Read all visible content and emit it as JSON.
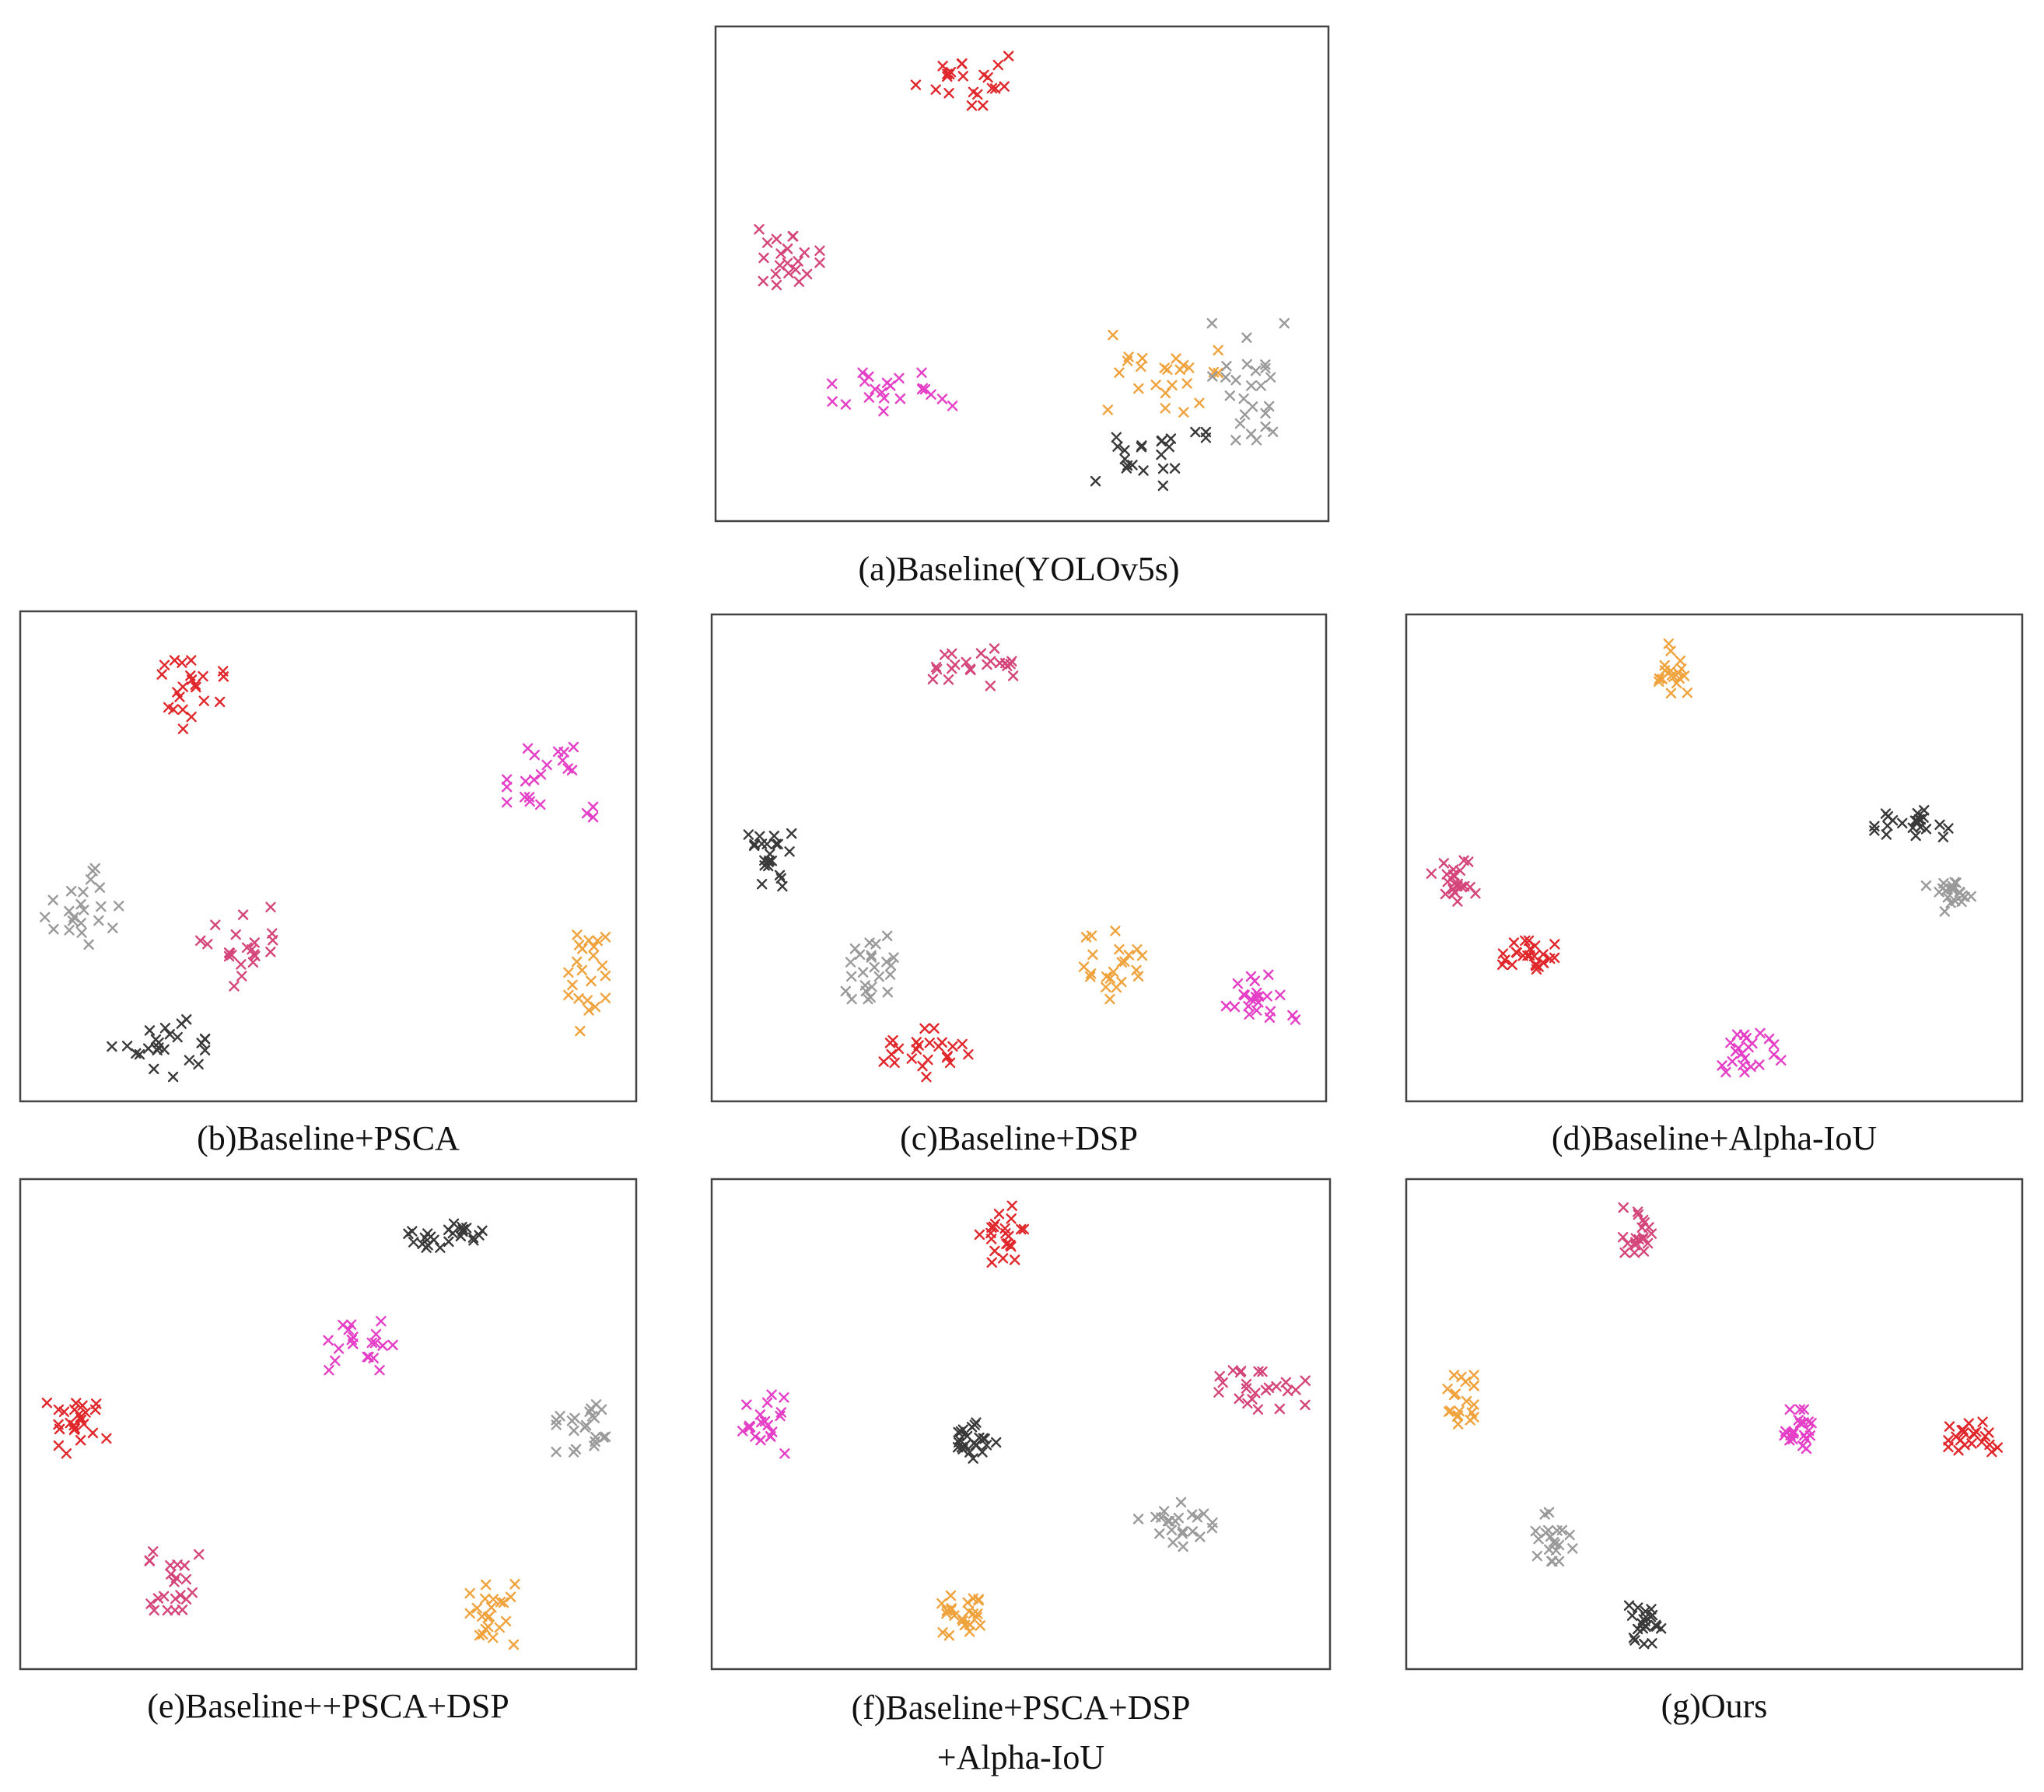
{
  "figure": {
    "colors": {
      "red": "#e0282c",
      "rose": "#d4467a",
      "magenta": "#e43fc6",
      "orange": "#f0a23c",
      "gray": "#9a9a9a",
      "black": "#3a3a3a",
      "frame": "#444444"
    }
  },
  "chart_data": [
    {
      "type": "scatter",
      "caption": "(a)Baseline(YOLOv5s)",
      "marker": "x",
      "xlim": [
        0,
        100
      ],
      "ylim": [
        0,
        100
      ],
      "series": [
        {
          "color": "red",
          "center": [
            40,
            89
          ],
          "spread": [
            8,
            5
          ],
          "count": 22
        },
        {
          "color": "rose",
          "center": [
            11,
            53
          ],
          "spread": [
            6,
            6
          ],
          "count": 22
        },
        {
          "color": "magenta",
          "center": [
            29,
            26
          ],
          "spread": [
            10,
            4
          ],
          "count": 22
        },
        {
          "color": "orange",
          "center": [
            73,
            30
          ],
          "spread": [
            9,
            8
          ],
          "count": 24
        },
        {
          "color": "gray",
          "center": [
            88,
            28
          ],
          "spread": [
            7,
            12
          ],
          "count": 26
        },
        {
          "color": "black",
          "center": [
            71,
            12
          ],
          "spread": [
            9,
            6
          ],
          "count": 22
        }
      ]
    },
    {
      "type": "scatter",
      "caption": "(b)Baseline+PSCA",
      "marker": "x",
      "xlim": [
        0,
        100
      ],
      "ylim": [
        0,
        100
      ],
      "series": [
        {
          "color": "red",
          "center": [
            28,
            83
          ],
          "spread": [
            5,
            7
          ],
          "count": 22
        },
        {
          "color": "magenta",
          "center": [
            86,
            66
          ],
          "spread": [
            7,
            8
          ],
          "count": 22
        },
        {
          "color": "gray",
          "center": [
            10,
            40
          ],
          "spread": [
            6,
            8
          ],
          "count": 22
        },
        {
          "color": "rose",
          "center": [
            35,
            32
          ],
          "spread": [
            6,
            9
          ],
          "count": 22
        },
        {
          "color": "orange",
          "center": [
            92,
            24
          ],
          "spread": [
            3,
            10
          ],
          "count": 22
        },
        {
          "color": "black",
          "center": [
            22,
            11
          ],
          "spread": [
            8,
            6
          ],
          "count": 24
        }
      ]
    },
    {
      "type": "scatter",
      "caption": "(c)Baseline+DSP",
      "marker": "x",
      "xlim": [
        0,
        100
      ],
      "ylim": [
        0,
        100
      ],
      "series": [
        {
          "color": "rose",
          "center": [
            44,
            89
          ],
          "spread": [
            8,
            4
          ],
          "count": 22
        },
        {
          "color": "black",
          "center": [
            9,
            50
          ],
          "spread": [
            4,
            8
          ],
          "count": 22
        },
        {
          "color": "gray",
          "center": [
            26,
            28
          ],
          "spread": [
            5,
            7
          ],
          "count": 24
        },
        {
          "color": "orange",
          "center": [
            66,
            28
          ],
          "spread": [
            7,
            7
          ],
          "count": 22
        },
        {
          "color": "magenta",
          "center": [
            89,
            21
          ],
          "spread": [
            6,
            5
          ],
          "count": 22
        },
        {
          "color": "red",
          "center": [
            35,
            10
          ],
          "spread": [
            7,
            5
          ],
          "count": 24
        }
      ]
    },
    {
      "type": "scatter",
      "caption": "(d)Baseline+Alpha-IoU",
      "marker": "x",
      "xlim": [
        0,
        100
      ],
      "ylim": [
        0,
        100
      ],
      "series": [
        {
          "color": "orange",
          "center": [
            44,
            88
          ],
          "spread": [
            3,
            6
          ],
          "count": 18
        },
        {
          "color": "black",
          "center": [
            82,
            57
          ],
          "spread": [
            6,
            3
          ],
          "count": 22
        },
        {
          "color": "gray",
          "center": [
            89,
            42
          ],
          "spread": [
            5,
            3
          ],
          "count": 20
        },
        {
          "color": "rose",
          "center": [
            8,
            45
          ],
          "spread": [
            4,
            5
          ],
          "count": 22
        },
        {
          "color": "red",
          "center": [
            20,
            30
          ],
          "spread": [
            5,
            3
          ],
          "count": 26
        },
        {
          "color": "magenta",
          "center": [
            56,
            10
          ],
          "spread": [
            5,
            4
          ],
          "count": 22
        }
      ]
    },
    {
      "type": "scatter",
      "caption": "(e)Baseline++PSCA+DSP",
      "marker": "x",
      "xlim": [
        0,
        100
      ],
      "ylim": [
        0,
        100
      ],
      "series": [
        {
          "color": "black",
          "center": [
            69,
            89
          ],
          "spread": [
            6,
            3
          ],
          "count": 24
        },
        {
          "color": "magenta",
          "center": [
            56,
            66
          ],
          "spread": [
            6,
            5
          ],
          "count": 20
        },
        {
          "color": "red",
          "center": [
            9,
            50
          ],
          "spread": [
            5,
            6
          ],
          "count": 24
        },
        {
          "color": "gray",
          "center": [
            91,
            49
          ],
          "spread": [
            4,
            5
          ],
          "count": 22
        },
        {
          "color": "rose",
          "center": [
            25,
            18
          ],
          "spread": [
            4,
            6
          ],
          "count": 22
        },
        {
          "color": "orange",
          "center": [
            77,
            12
          ],
          "spread": [
            4,
            7
          ],
          "count": 22
        }
      ]
    },
    {
      "type": "scatter",
      "caption": "(f)Baseline+PSCA+DSP\n+Alpha-IoU",
      "marker": "x",
      "xlim": [
        0,
        100
      ],
      "ylim": [
        0,
        100
      ],
      "series": [
        {
          "color": "red",
          "center": [
            47,
            89
          ],
          "spread": [
            4,
            6
          ],
          "count": 22
        },
        {
          "color": "magenta",
          "center": [
            9,
            50
          ],
          "spread": [
            4,
            6
          ],
          "count": 20
        },
        {
          "color": "rose",
          "center": [
            89,
            57
          ],
          "spread": [
            7,
            4
          ],
          "count": 24
        },
        {
          "color": "black",
          "center": [
            42,
            47
          ],
          "spread": [
            4,
            4
          ],
          "count": 24
        },
        {
          "color": "gray",
          "center": [
            75,
            30
          ],
          "spread": [
            6,
            5
          ],
          "count": 22
        },
        {
          "color": "orange",
          "center": [
            40,
            10
          ],
          "spread": [
            4,
            5
          ],
          "count": 24
        }
      ]
    },
    {
      "type": "scatter",
      "caption": "(g)Ours",
      "marker": "x",
      "xlim": [
        0,
        100
      ],
      "ylim": [
        0,
        100
      ],
      "series": [
        {
          "color": "rose",
          "center": [
            38,
            90
          ],
          "spread": [
            3,
            5
          ],
          "count": 20
        },
        {
          "color": "orange",
          "center": [
            8,
            55
          ],
          "spread": [
            3,
            5
          ],
          "count": 20
        },
        {
          "color": "magenta",
          "center": [
            64,
            49
          ],
          "spread": [
            4,
            4
          ],
          "count": 22
        },
        {
          "color": "red",
          "center": [
            92,
            47
          ],
          "spread": [
            4,
            4
          ],
          "count": 22
        },
        {
          "color": "gray",
          "center": [
            24,
            27
          ],
          "spread": [
            3,
            5
          ],
          "count": 20
        },
        {
          "color": "black",
          "center": [
            39,
            9
          ],
          "spread": [
            3,
            5
          ],
          "count": 22
        }
      ]
    }
  ]
}
